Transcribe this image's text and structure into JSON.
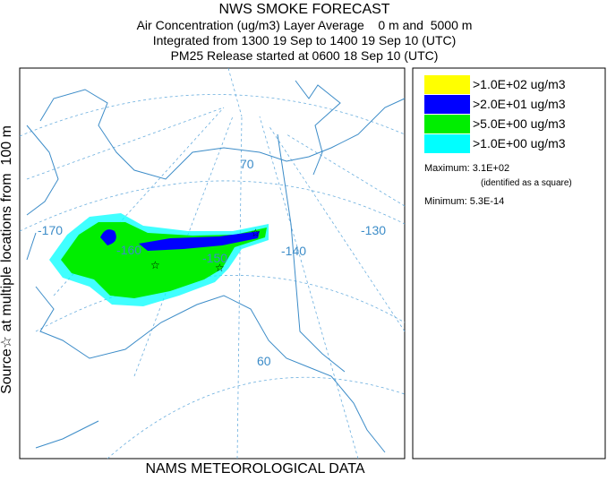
{
  "header": {
    "title": "NWS SMOKE FORECAST",
    "lines": [
      "Air Concentration (ug/m3) Layer Average    0 m and  5000 m",
      "Integrated from 1300 19 Sep to 1400 19 Sep 10 (UTC)",
      "PM25 Release started at 0600 18 Sep 10 (UTC)"
    ]
  },
  "side_label": "Source☆ at multiple locations from  100 m",
  "footer": "NAMS METEOROLOGICAL DATA",
  "map": {
    "labels": [
      "-170",
      "-160",
      "-150",
      "-140",
      "-130",
      "70",
      "60"
    ]
  },
  "legend": {
    "items": [
      {
        "label": ">1.0E+02 ug/m3",
        "color": "#ffff00"
      },
      {
        "label": ">2.0E+01 ug/m3",
        "color": "#0000ff"
      },
      {
        "label": ">5.0E+00 ug/m3",
        "color": "#00ee00"
      },
      {
        "label": ">1.0E+00 ug/m3",
        "color": "#00ffff"
      }
    ],
    "maximum": "Maximum: 3.1E+02",
    "maximum_note": "(identified as a square)",
    "minimum": "Minimum: 5.3E-14"
  }
}
